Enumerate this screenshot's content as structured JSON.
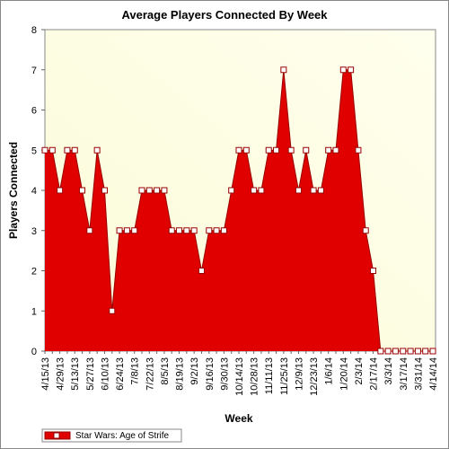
{
  "chart_data": {
    "type": "area",
    "title": "Average Players Connected By Week",
    "x_label": "Week",
    "y_label": "Players Connected",
    "categories": [
      "4/15/13",
      null,
      "4/29/13",
      null,
      "5/13/13",
      null,
      "5/27/13",
      null,
      "6/10/13",
      null,
      "6/24/13",
      null,
      "7/8/13",
      null,
      "7/22/13",
      null,
      "8/5/13",
      null,
      "8/19/13",
      null,
      "9/2/13",
      null,
      "9/16/13",
      null,
      "9/30/13",
      null,
      "10/14/13",
      null,
      "10/28/13",
      null,
      "11/11/13",
      null,
      "11/25/13",
      null,
      "12/9/13",
      null,
      "12/23/13",
      null,
      "1/6/14",
      null,
      "1/20/14",
      null,
      "2/3/14",
      null,
      "2/17/14",
      null,
      "3/3/14",
      null,
      "3/17/14",
      null,
      "3/31/14",
      null,
      "4/14/14"
    ],
    "series": [
      {
        "name": "Star Wars: Age of Strife",
        "color": "#e00000",
        "values": [
          5,
          5,
          4,
          5,
          5,
          4,
          3,
          5,
          4,
          1,
          3,
          3,
          3,
          4,
          4,
          4,
          4,
          3,
          3,
          3,
          3,
          2,
          3,
          3,
          3,
          4,
          5,
          5,
          4,
          4,
          5,
          5,
          7,
          5,
          4,
          5,
          4,
          4,
          5,
          5,
          7,
          7,
          5,
          3,
          2,
          0,
          0,
          0,
          0,
          0,
          0,
          0,
          0
        ]
      }
    ],
    "ylim": [
      0,
      8
    ],
    "yticks": [
      0,
      1,
      2,
      3,
      4,
      5,
      6,
      7,
      8
    ]
  }
}
